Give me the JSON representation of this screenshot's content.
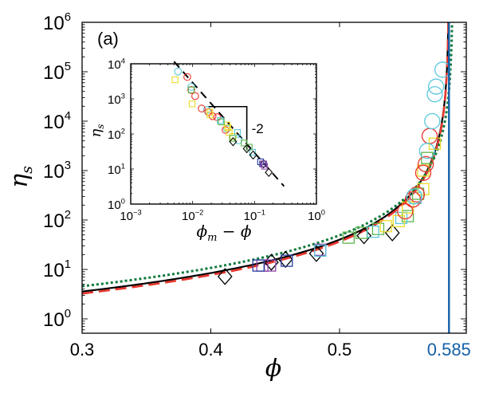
{
  "chart_data": [
    {
      "id": "main",
      "type": "scatter",
      "panel_label": "(a)",
      "xlabel": "ϕ",
      "ylabel": "ηs",
      "xlim": [
        0.3,
        0.6
      ],
      "ylim_log10": [
        -0.29,
        6
      ],
      "yscale": "log",
      "xticks": [
        {
          "value": 0.3,
          "label": "0.3",
          "color": "#000000"
        },
        {
          "value": 0.4,
          "label": "0.4",
          "color": "#000000"
        },
        {
          "value": 0.5,
          "label": "0.5",
          "color": "#000000"
        },
        {
          "value": 0.585,
          "label": "0.585",
          "color": "#1560a8"
        }
      ],
      "yticks": [
        {
          "exp": 0,
          "base": "10",
          "sup": "0"
        },
        {
          "exp": 1,
          "base": "10",
          "sup": "1"
        },
        {
          "exp": 2,
          "base": "10",
          "sup": "2"
        },
        {
          "exp": 3,
          "base": "10",
          "sup": "3"
        },
        {
          "exp": 4,
          "base": "10",
          "sup": "4"
        },
        {
          "exp": 5,
          "base": "10",
          "sup": "5"
        },
        {
          "exp": 6,
          "base": "10",
          "sup": "6"
        }
      ],
      "vline": {
        "x": 0.585,
        "color": "#1560a8",
        "label": "phi_m"
      },
      "curves": [
        {
          "name": "fit-solid",
          "style": "solid",
          "color": "#000000",
          "phi_m": 0.585,
          "prefactor": 0.29,
          "exponent": 2
        },
        {
          "name": "fit-dashed",
          "style": "dashed",
          "color": "#e8352c",
          "phi_m": 0.585,
          "prefactor": 0.265,
          "exponent": 2
        },
        {
          "name": "fit-dotted",
          "style": "dotted",
          "color": "#0f7a3c",
          "phi_m": 0.588,
          "prefactor": 0.38,
          "exponent": 2
        }
      ],
      "series": [
        {
          "name": "black diamonds",
          "marker": "diamond",
          "color": "#000000",
          "points": [
            [
              0.411,
              7.2
            ],
            [
              0.447,
              14
            ],
            [
              0.458,
              16
            ],
            [
              0.482,
              21
            ],
            [
              0.519,
              48
            ],
            [
              0.541,
              55
            ]
          ]
        },
        {
          "name": "purple squares",
          "marker": "square",
          "color": "#8e44ad",
          "points": [
            [
              0.44,
              12
            ],
            [
              0.446,
              12
            ],
            [
              0.485,
              25
            ]
          ]
        },
        {
          "name": "blue squares",
          "marker": "square",
          "color": "#2a3f9e",
          "points": [
            [
              0.437,
              12
            ],
            [
              0.459,
              15
            ]
          ]
        },
        {
          "name": "green squares",
          "marker": "square",
          "color": "#5ab54a",
          "points": [
            [
              0.507,
              44
            ],
            [
              0.517,
              55
            ],
            [
              0.53,
              66
            ],
            [
              0.553,
              120
            ],
            [
              0.561,
              340
            ],
            [
              0.568,
              1800
            ]
          ]
        },
        {
          "name": "cyan squares",
          "marker": "square",
          "color": "#5bc8dc",
          "points": [
            [
              0.485,
              24
            ],
            [
              0.526,
              58
            ],
            [
              0.548,
              110
            ],
            [
              0.559,
              280
            ]
          ]
        },
        {
          "name": "yellow squares",
          "marker": "square",
          "color": "#ecdc28",
          "points": [
            [
              0.536,
              75
            ],
            [
              0.546,
              95
            ],
            [
              0.553,
              180
            ],
            [
              0.565,
              420
            ],
            [
              0.574,
              3500
            ],
            [
              0.565,
              1000
            ]
          ]
        },
        {
          "name": "red circles",
          "marker": "circle",
          "color": "#e8352c",
          "points": [
            [
              0.551,
              150
            ],
            [
              0.557,
              260
            ],
            [
              0.56,
              330
            ],
            [
              0.565,
              900
            ],
            [
              0.567,
              1350
            ],
            [
              0.57,
              5000
            ]
          ]
        },
        {
          "name": "cyan circles",
          "marker": "circle",
          "color": "#5bc8dc",
          "points": [
            [
              0.558,
              300
            ],
            [
              0.568,
              2500
            ],
            [
              0.572,
              10000
            ],
            [
              0.574,
              35000
            ],
            [
              0.575,
              50000
            ],
            [
              0.58,
              110000
            ]
          ]
        }
      ]
    },
    {
      "id": "inset",
      "type": "scatter",
      "xlabel": "ϕm − ϕ",
      "ylabel": "ηs",
      "xscale": "log",
      "yscale": "log",
      "xlim_log10": [
        -3,
        0
      ],
      "ylim_log10": [
        0,
        4
      ],
      "xticks": [
        {
          "exp": -3,
          "base": "10",
          "sup": "−3"
        },
        {
          "exp": -2,
          "base": "10",
          "sup": "−2"
        },
        {
          "exp": -1,
          "base": "10",
          "sup": "−1"
        },
        {
          "exp": 0,
          "base": "10",
          "sup": "0"
        }
      ],
      "yticks": [
        {
          "exp": 0,
          "base": "10",
          "sup": "0"
        },
        {
          "exp": 1,
          "base": "10",
          "sup": "1"
        },
        {
          "exp": 2,
          "base": "10",
          "sup": "2"
        },
        {
          "exp": 3,
          "base": "10",
          "sup": "3"
        },
        {
          "exp": 4,
          "base": "10",
          "sup": "4"
        }
      ],
      "slope_triangle": {
        "label": "-2",
        "x0": 0.018,
        "x1": 0.075,
        "y_top": 600
      },
      "fit_line": {
        "style": "dashed",
        "color": "#000000",
        "x_range": [
          0.005,
          0.3
        ],
        "prefactor": 0.29,
        "exponent": -2
      },
      "series": [
        {
          "name": "cyan circles",
          "marker": "circle",
          "color": "#5bc8dc",
          "points": [
            [
              0.0058,
              6000
            ],
            [
              0.0095,
              2200
            ],
            [
              0.017,
              480
            ],
            [
              0.036,
              140
            ],
            [
              0.055,
              65
            ]
          ]
        },
        {
          "name": "red circles",
          "marker": "circle",
          "color": "#e8352c",
          "points": [
            [
              0.0082,
              4200
            ],
            [
              0.0095,
              1800
            ],
            [
              0.011,
              1200
            ],
            [
              0.014,
              530
            ],
            [
              0.018,
              420
            ],
            [
              0.021,
              320
            ],
            [
              0.025,
              300
            ],
            [
              0.034,
              130
            ]
          ]
        },
        {
          "name": "yellow squares",
          "marker": "square",
          "color": "#ecdc28",
          "points": [
            [
              0.0052,
              3500
            ],
            [
              0.0098,
              720
            ],
            [
              0.019,
              420
            ],
            [
              0.019,
              350
            ],
            [
              0.036,
              180
            ],
            [
              0.037,
              150
            ],
            [
              0.039,
              110
            ],
            [
              0.045,
              85
            ]
          ]
        },
        {
          "name": "green squares",
          "marker": "square",
          "color": "#5ab54a",
          "points": [
            [
              0.0095,
              1800
            ],
            [
              0.029,
              220
            ],
            [
              0.044,
              75
            ],
            [
              0.068,
              55
            ],
            [
              0.082,
              42
            ]
          ]
        },
        {
          "name": "cyan squares",
          "marker": "square",
          "color": "#5bc8dc",
          "points": [
            [
              0.028,
              240
            ],
            [
              0.053,
              110
            ],
            [
              0.093,
              30
            ]
          ]
        },
        {
          "name": "black diamonds",
          "marker": "diamond",
          "color": "#000000",
          "points": [
            [
              0.045,
              60
            ],
            [
              0.075,
              38
            ],
            [
              0.095,
              25
            ],
            [
              0.14,
              14
            ],
            [
              0.17,
              8
            ]
          ]
        },
        {
          "name": "blue squares",
          "marker": "square",
          "color": "#2a3f9e",
          "points": [
            [
              0.125,
              16
            ],
            [
              0.135,
              14
            ]
          ]
        },
        {
          "name": "purple squares",
          "marker": "square",
          "color": "#8e44ad",
          "points": [
            [
              0.14,
              14
            ],
            [
              0.145,
              12
            ]
          ]
        }
      ]
    }
  ]
}
